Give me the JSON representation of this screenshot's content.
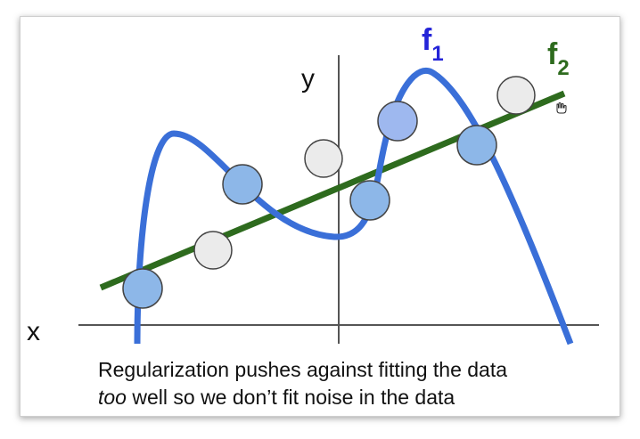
{
  "axes": {
    "x_label": "x",
    "y_label": "y"
  },
  "curves": {
    "f1": {
      "label_main": "f",
      "label_sub": "1",
      "color": "#3A6FD8"
    },
    "f2": {
      "label_main": "f",
      "label_sub": "2",
      "color": "#2E6B1E"
    }
  },
  "points": {
    "fill_on_curve": "#8DB7E8",
    "fill_highlight": "#9EB8EF",
    "fill_off": "#EBEBEB",
    "stroke": "#444444"
  },
  "caption": {
    "line1": "Regularization pushes against fitting the data",
    "line2_italic": "too",
    "line2_rest": " well so we don’t fit noise in the data"
  },
  "icons": {
    "cursor": "hand-cursor-icon"
  }
}
